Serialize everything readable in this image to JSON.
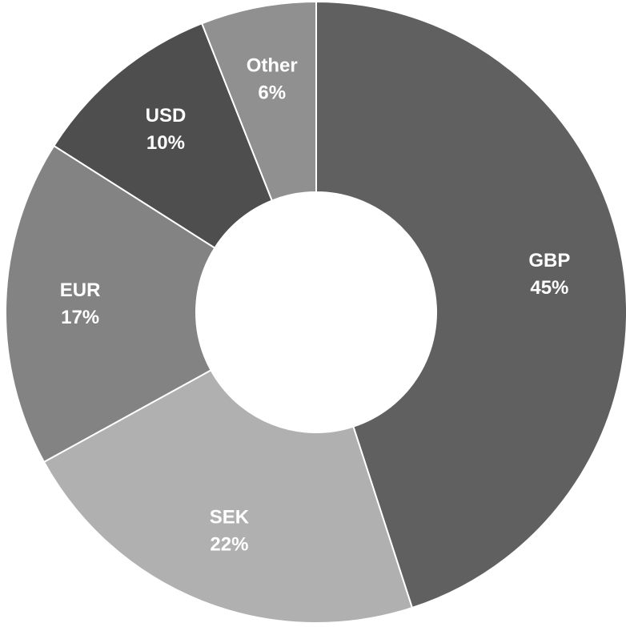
{
  "chart_data": {
    "type": "donut",
    "categories": [
      "GBP",
      "SEK",
      "EUR",
      "USD",
      "Other"
    ],
    "values": [
      45,
      22,
      17,
      10,
      6
    ],
    "value_labels": [
      "45%",
      "22%",
      "17%",
      "10%",
      "6%"
    ],
    "colors": [
      "#606060",
      "#b0b0b0",
      "#838383",
      "#4e4e4e",
      "#909090"
    ]
  }
}
